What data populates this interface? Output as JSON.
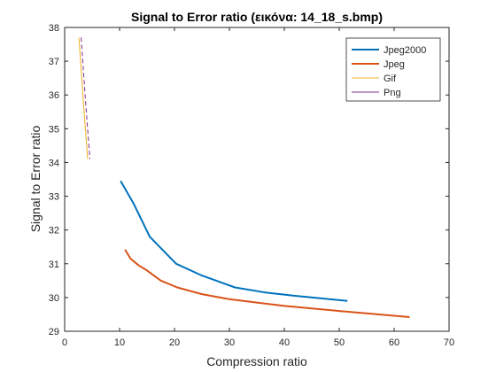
{
  "chart_data": {
    "type": "line",
    "title": "Signal to Error ratio (εικόνα: 14_18_s.bmp)",
    "xlabel": "Compression ratio",
    "ylabel": "Signal to Error ratio",
    "xlim": [
      0,
      70
    ],
    "ylim": [
      29,
      38
    ],
    "xticks": [
      "0",
      "10",
      "20",
      "30",
      "40",
      "50",
      "60",
      "70"
    ],
    "yticks": [
      "29",
      "30",
      "31",
      "32",
      "33",
      "34",
      "35",
      "36",
      "37",
      "38"
    ],
    "grid": false,
    "legend_position": "top-right",
    "series": [
      {
        "name": "Jpeg2000",
        "color": "#0072BD",
        "points": [
          [
            10.2,
            33.45
          ],
          [
            12.5,
            32.8
          ],
          [
            15.5,
            31.8
          ],
          [
            20.3,
            31.0
          ],
          [
            25.0,
            30.65
          ],
          [
            31.0,
            30.3
          ],
          [
            36.5,
            30.15
          ],
          [
            42.0,
            30.05
          ],
          [
            51.5,
            29.9
          ]
        ]
      },
      {
        "name": "Jpeg",
        "color": "#D95319",
        "points": [
          [
            11.0,
            31.42
          ],
          [
            12.0,
            31.15
          ],
          [
            13.5,
            30.95
          ],
          [
            15.0,
            30.8
          ],
          [
            17.5,
            30.5
          ],
          [
            20.5,
            30.3
          ],
          [
            25.0,
            30.1
          ],
          [
            30.0,
            29.95
          ],
          [
            35.0,
            29.85
          ],
          [
            40.0,
            29.75
          ],
          [
            50.0,
            29.6
          ],
          [
            62.8,
            29.42
          ]
        ]
      },
      {
        "name": "Gif",
        "color": "#EDB120",
        "points": [
          [
            2.6,
            37.7
          ],
          [
            3.4,
            35.8
          ],
          [
            4.2,
            34.1
          ]
        ]
      },
      {
        "name": "Png",
        "color": "#7E2F8E",
        "points": [
          [
            3.0,
            37.7
          ],
          [
            3.8,
            35.8
          ],
          [
            4.6,
            34.1
          ]
        ]
      }
    ]
  }
}
